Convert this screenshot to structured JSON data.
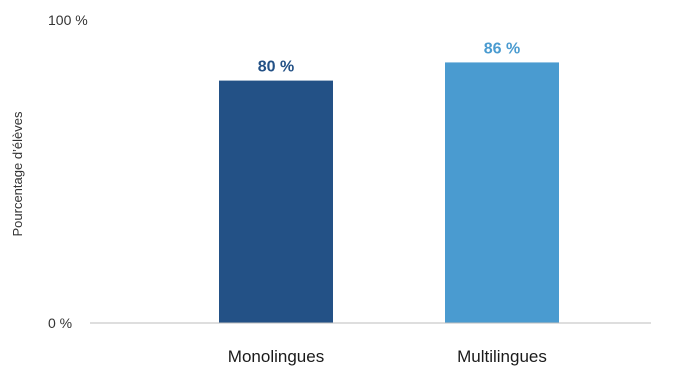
{
  "chart_data": {
    "type": "bar",
    "categories": [
      "Monolingues",
      "Multilingues"
    ],
    "values": [
      80,
      86
    ],
    "value_labels": [
      "80 %",
      "86 %"
    ],
    "colors": [
      "#235186",
      "#4a9bd0"
    ],
    "ylabel": "Pourcentage d’élèves",
    "ylim": [
      0,
      100
    ],
    "y_ticks": [
      {
        "value": 100,
        "label": "100 %"
      },
      {
        "value": 0,
        "label": "0 %"
      }
    ],
    "grid": false,
    "axis_color": "#bdbdbd"
  }
}
